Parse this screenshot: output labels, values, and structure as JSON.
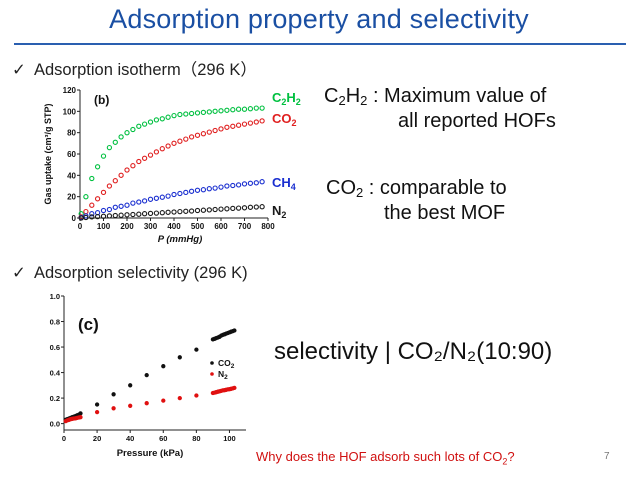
{
  "slide": {
    "title": "Adsorption property and selectivity",
    "page_number": "7",
    "accent_color": "#1a4fa3"
  },
  "bullets": [
    {
      "icon": "checkmark-icon",
      "text": "Adsorption isotherm（296 K）"
    },
    {
      "icon": "checkmark-icon",
      "text": "Adsorption selectivity (296 K)"
    }
  ],
  "notes": {
    "c2h2": {
      "line1": ": Maximum value of",
      "line2": "all reported HOFs"
    },
    "co2": {
      "line1": ": comparable to",
      "line2": "the best MOF"
    },
    "selectivity": "selectivity | CO₂/N₂(10:90)",
    "question": "Why does the HOF adsorb such lots of CO",
    "question_sub": "2",
    "question_end": "?"
  },
  "chart_data": [
    {
      "type": "scatter",
      "panel_label": "(b)",
      "xlabel": "P (mmHg)",
      "ylabel": "Gas uptake (cm³/g STP)",
      "xlim": [
        0,
        800
      ],
      "ylim": [
        0,
        120
      ],
      "xticks": [
        0,
        100,
        200,
        300,
        400,
        500,
        600,
        700,
        800
      ],
      "yticks": [
        0,
        20,
        40,
        60,
        80,
        100,
        120
      ],
      "series": [
        {
          "name": "C2H2",
          "color": "#00c040",
          "x": [
            5,
            25,
            50,
            75,
            100,
            125,
            150,
            175,
            200,
            225,
            250,
            275,
            300,
            325,
            350,
            375,
            400,
            425,
            450,
            475,
            500,
            525,
            550,
            575,
            600,
            625,
            650,
            675,
            700,
            725,
            750,
            775
          ],
          "y": [
            4,
            20,
            37,
            48,
            58,
            66,
            71,
            76,
            80,
            83,
            86,
            88,
            90,
            92,
            93,
            94.5,
            96,
            97,
            97.5,
            98,
            98.5,
            99,
            99.5,
            100,
            100.5,
            101,
            101.5,
            102,
            102,
            102.5,
            103,
            103
          ]
        },
        {
          "name": "CO2",
          "color": "#e02020",
          "x": [
            5,
            25,
            50,
            75,
            100,
            125,
            150,
            175,
            200,
            225,
            250,
            275,
            300,
            325,
            350,
            375,
            400,
            425,
            450,
            475,
            500,
            525,
            550,
            575,
            600,
            625,
            650,
            675,
            700,
            725,
            750,
            775
          ],
          "y": [
            1,
            6,
            12,
            18,
            24,
            30,
            35,
            40,
            45,
            49,
            53,
            56,
            59,
            62,
            65,
            67.5,
            70,
            72,
            74,
            76,
            77.5,
            79,
            80.5,
            82,
            83.5,
            85,
            86,
            87,
            88,
            89,
            90,
            91
          ]
        },
        {
          "name": "CH4",
          "color": "#1a2fd0",
          "x": [
            5,
            25,
            50,
            75,
            100,
            125,
            150,
            175,
            200,
            225,
            250,
            275,
            300,
            325,
            350,
            375,
            400,
            425,
            450,
            475,
            500,
            525,
            550,
            575,
            600,
            625,
            650,
            675,
            700,
            725,
            750,
            775
          ],
          "y": [
            0.5,
            2,
            4,
            5,
            7,
            8,
            10,
            11,
            12,
            14,
            15,
            16,
            17.5,
            18.5,
            19.5,
            20.5,
            22,
            23,
            24,
            25,
            26,
            26.5,
            27.5,
            28,
            29,
            30,
            30.5,
            31,
            32,
            32.5,
            33,
            34
          ]
        },
        {
          "name": "N2",
          "color": "#1a1a1a",
          "x": [
            5,
            25,
            50,
            75,
            100,
            125,
            150,
            175,
            200,
            225,
            250,
            275,
            300,
            325,
            350,
            375,
            400,
            425,
            450,
            475,
            500,
            525,
            550,
            575,
            600,
            625,
            650,
            675,
            700,
            725,
            750,
            775
          ],
          "y": [
            0,
            0.5,
            1,
            1.3,
            1.6,
            2,
            2.3,
            2.6,
            3,
            3.3,
            3.6,
            4,
            4.3,
            4.6,
            5,
            5.3,
            5.6,
            6,
            6.3,
            6.6,
            7,
            7.3,
            7.6,
            8,
            8.3,
            8.6,
            9,
            9.3,
            9.6,
            10,
            10.3,
            10.6
          ]
        }
      ]
    },
    {
      "type": "scatter",
      "panel_label": "(c)",
      "xlabel": "Pressure (kPa)",
      "ylabel": "",
      "xlim": [
        0,
        110
      ],
      "ylim": [
        -0.05,
        1.0
      ],
      "xticks": [
        0,
        20,
        40,
        60,
        80,
        100
      ],
      "yticks": [
        0.0,
        0.2,
        0.4,
        0.6,
        0.8,
        1.0
      ],
      "legend_position": "right",
      "series": [
        {
          "name": "CO2",
          "color": "#111111",
          "x": [
            1,
            2,
            3,
            4,
            5,
            6,
            7,
            8,
            9,
            10,
            20,
            30,
            40,
            50,
            60,
            70,
            80,
            90,
            91,
            92,
            93,
            94,
            95,
            96,
            97,
            98,
            99,
            100,
            101,
            102,
            103
          ],
          "y": [
            0.03,
            0.035,
            0.04,
            0.045,
            0.05,
            0.055,
            0.06,
            0.065,
            0.07,
            0.08,
            0.15,
            0.23,
            0.3,
            0.38,
            0.45,
            0.52,
            0.58,
            0.66,
            0.665,
            0.67,
            0.675,
            0.68,
            0.69,
            0.695,
            0.7,
            0.705,
            0.71,
            0.715,
            0.72,
            0.725,
            0.73
          ]
        },
        {
          "name": "N2",
          "color": "#e01010",
          "x": [
            1,
            2,
            3,
            4,
            5,
            6,
            7,
            8,
            9,
            10,
            20,
            30,
            40,
            50,
            60,
            70,
            80,
            90,
            91,
            92,
            93,
            94,
            95,
            96,
            97,
            98,
            99,
            100,
            101,
            102,
            103
          ],
          "y": [
            0.02,
            0.025,
            0.03,
            0.035,
            0.038,
            0.04,
            0.042,
            0.045,
            0.048,
            0.05,
            0.09,
            0.12,
            0.14,
            0.16,
            0.18,
            0.2,
            0.22,
            0.24,
            0.243,
            0.246,
            0.25,
            0.253,
            0.256,
            0.26,
            0.262,
            0.265,
            0.268,
            0.27,
            0.273,
            0.276,
            0.28
          ]
        }
      ]
    }
  ]
}
